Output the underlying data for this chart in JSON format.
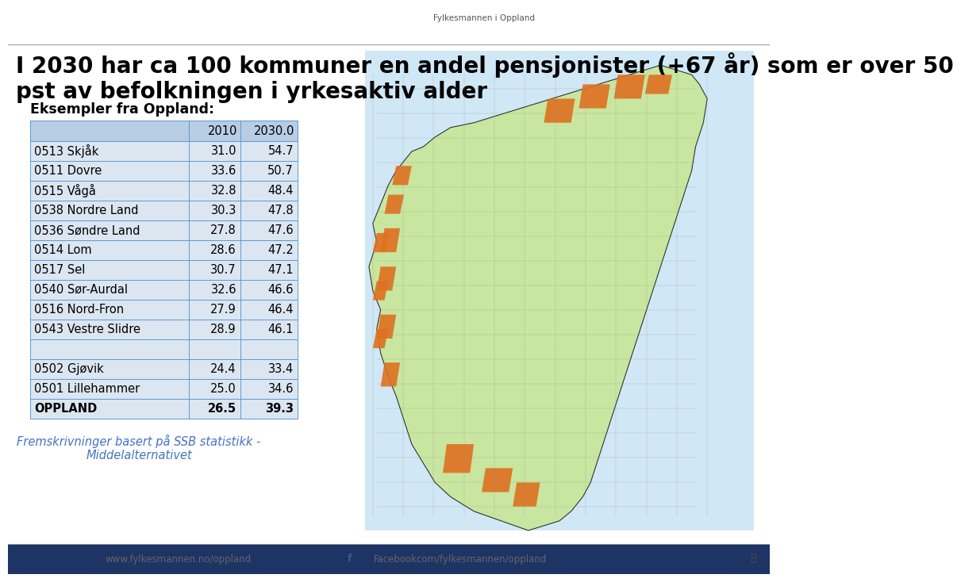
{
  "title_line1": "I 2030 har ca 100 kommuner en andel pensjonister (+67 år) som er over 50",
  "title_line2": "pst av befolkningen i yrkesaktiv alder",
  "subtitle": "Eksempler fra Oppland:",
  "col_headers": [
    "",
    "2010",
    "2030.0"
  ],
  "rows": [
    [
      "0513 Skjåk",
      "31.0",
      "54.7"
    ],
    [
      "0511 Dovre",
      "33.6",
      "50.7"
    ],
    [
      "0515 Vågå",
      "32.8",
      "48.4"
    ],
    [
      "0538 Nordre Land",
      "30.3",
      "47.8"
    ],
    [
      "0536 Søndre Land",
      "27.8",
      "47.6"
    ],
    [
      "0514 Lom",
      "28.6",
      "47.2"
    ],
    [
      "0517 Sel",
      "30.7",
      "47.1"
    ],
    [
      "0540 Sør-Aurdal",
      "32.6",
      "46.6"
    ],
    [
      "0516 Nord-Fron",
      "27.9",
      "46.4"
    ],
    [
      "0543 Vestre Slidre",
      "28.9",
      "46.1"
    ]
  ],
  "rows_bottom": [
    [
      "0502 Gjøvik",
      "24.4",
      "33.4"
    ],
    [
      "0501 Lillehammer",
      "25.0",
      "34.6"
    ],
    [
      "OPPLAND",
      "26.5",
      "39.3"
    ]
  ],
  "footer_bar_color": "#1e3465",
  "footer_text1": "www.fylkesmannen.no/oppland",
  "footer_text2": "Facebookcom/fylkesmannen/oppland",
  "footer_page": "8",
  "source_text": "Fremskrivninger basert på SSB statistikk -\nMiddelalternativet",
  "bg_color": "#ffffff",
  "table_header_bg": "#b8cce4",
  "table_row_bg": "#dce6f1",
  "table_border_color": "#5b9bd5",
  "title_color": "#000000",
  "subtitle_color": "#000000",
  "source_color": "#4472c4",
  "logo_text": "Fylkesmannen i Oppland",
  "norway_body_color": "#c8e6a0",
  "norway_orange_color": "#e07020",
  "norway_sea_color": "#c8dff0"
}
